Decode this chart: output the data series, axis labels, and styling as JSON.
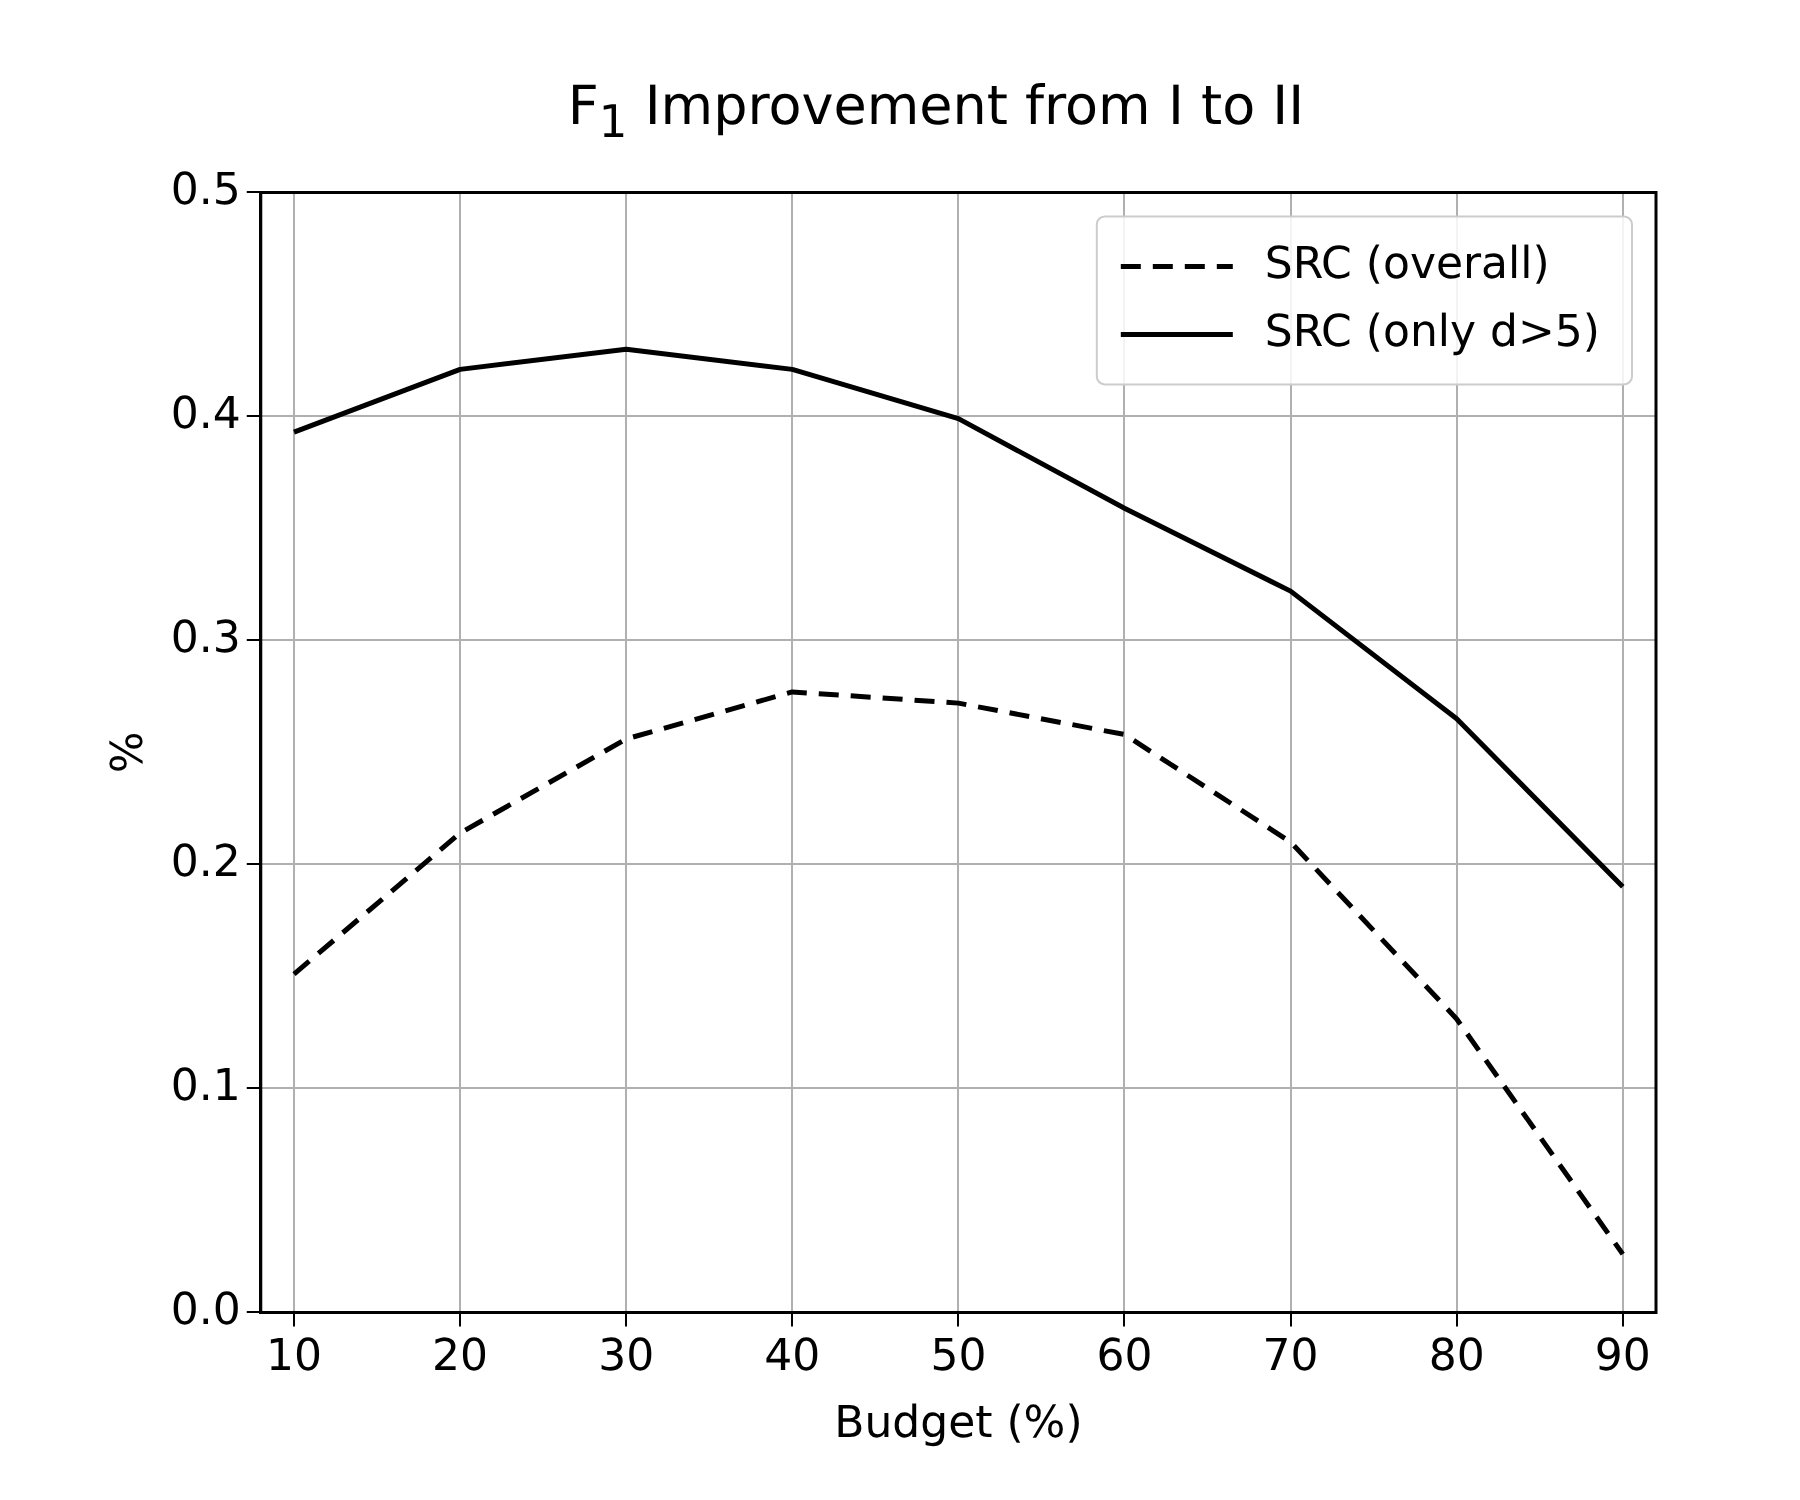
{
  "chart_data": {
    "type": "line",
    "title": "F$_{1}$ Improvement from I to II",
    "xlabel": "Budget (%)",
    "ylabel": "%",
    "x": [
      10,
      20,
      30,
      40,
      50,
      60,
      70,
      80,
      90
    ],
    "series": [
      {
        "name": "SRC (overall)",
        "color": "#000000",
        "line_style": "dashed",
        "values": [
          0.151,
          0.214,
          0.256,
          0.277,
          0.272,
          0.258,
          0.21,
          0.131,
          0.026
        ]
      },
      {
        "name": "SRC (only d>5)",
        "color": "#000000",
        "line_style": "solid",
        "values": [
          0.393,
          0.421,
          0.43,
          0.421,
          0.399,
          0.359,
          0.322,
          0.265,
          0.19
        ]
      }
    ],
    "xlim": [
      8,
      92
    ],
    "xticks": [
      10,
      20,
      30,
      40,
      50,
      60,
      70,
      80,
      90
    ],
    "ylim": [
      0,
      0.5
    ],
    "yticks": [
      {
        "value": 0,
        "label": "0.0"
      },
      {
        "value": 0.1,
        "label": "0.1"
      },
      {
        "value": 0.2,
        "label": "0.2"
      },
      {
        "value": 0.3,
        "label": "0.3"
      },
      {
        "value": 0.4,
        "label": "0.4"
      },
      {
        "value": 0.5,
        "label": "0.5"
      }
    ],
    "grid": true,
    "legend": "top right",
    "marker": "none"
  }
}
